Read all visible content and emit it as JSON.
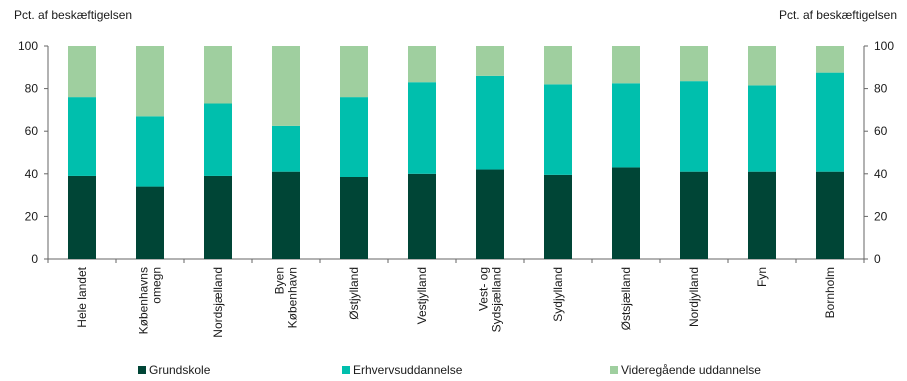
{
  "chart_data": {
    "type": "bar",
    "stacked": true,
    "ylabel_left": "Pct. af beskæftigelsen",
    "ylabel_right": "Pct. af beskæftigelsen",
    "ylim": [
      0,
      100
    ],
    "yticks": [
      0,
      20,
      40,
      60,
      80,
      100
    ],
    "grid": false,
    "legend_position": "bottom",
    "categories": [
      [
        "Hele landet"
      ],
      [
        "Københavns",
        "omegn"
      ],
      [
        "Nordsjælland"
      ],
      [
        "Byen",
        "København"
      ],
      [
        "Østjylland"
      ],
      [
        "Vestjylland"
      ],
      [
        "Vest- og",
        "Sydsjælland"
      ],
      [
        "Sydjylland"
      ],
      [
        "Østsjælland"
      ],
      [
        "Nordjylland"
      ],
      [
        "Fyn"
      ],
      [
        "Bornholm"
      ]
    ],
    "series": [
      {
        "name": "Grundskole",
        "color": "#004536",
        "values": [
          39,
          34,
          39,
          41,
          38.5,
          40,
          42,
          39.5,
          43,
          41,
          41,
          41
        ]
      },
      {
        "name": "Erhvervsuddannelse",
        "color": "#00bfad",
        "values": [
          37,
          33,
          34,
          21.5,
          37.5,
          43,
          44,
          42.5,
          39.5,
          42.5,
          40.5,
          46.5
        ]
      },
      {
        "name": "Videregående uddannelse",
        "color": "#9fcf9f",
        "values": [
          24,
          33,
          27,
          37.5,
          24,
          17,
          14,
          18,
          17.5,
          16.5,
          18.5,
          12.5
        ]
      }
    ]
  }
}
